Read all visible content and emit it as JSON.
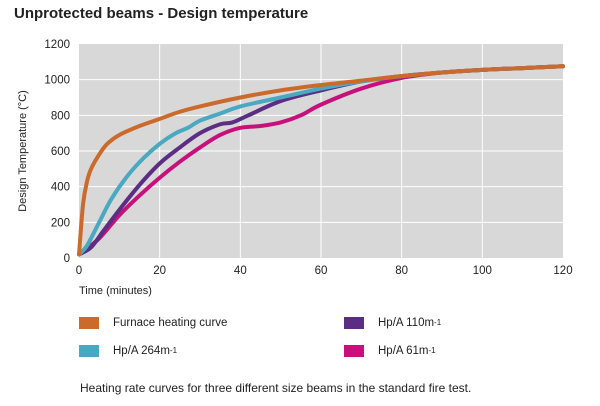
{
  "chart_data": {
    "type": "line",
    "title": "Unprotected beams - Design temperature",
    "xlabel": "Time (minutes)",
    "ylabel": "Design Temperature (°C)",
    "xlim": [
      0,
      120
    ],
    "ylim": [
      0,
      1200
    ],
    "xticks": [
      0,
      20,
      40,
      60,
      80,
      100,
      120
    ],
    "yticks": [
      0,
      200,
      400,
      600,
      800,
      1000,
      1200
    ],
    "grid": true,
    "legend_position": "bottom",
    "series": [
      {
        "name": "Furnace heating curve",
        "color": "#cc6a2c",
        "x": [
          0,
          1,
          2,
          3,
          5,
          7,
          10,
          15,
          20,
          25,
          30,
          40,
          50,
          60,
          70,
          80,
          90,
          100,
          110,
          120
        ],
        "y": [
          20,
          300,
          430,
          500,
          580,
          640,
          690,
          740,
          780,
          820,
          850,
          900,
          940,
          970,
          995,
          1020,
          1040,
          1055,
          1065,
          1075
        ]
      },
      {
        "name": "Hp/A 264m",
        "name_sup": "-1",
        "color": "#4aa8c0",
        "x": [
          0,
          2,
          5,
          8,
          12,
          16,
          20,
          24,
          27,
          30,
          35,
          40,
          50,
          60,
          70,
          80,
          90,
          100,
          110,
          120
        ],
        "y": [
          20,
          70,
          200,
          330,
          460,
          560,
          640,
          700,
          730,
          770,
          810,
          850,
          900,
          950,
          990,
          1020,
          1040,
          1055,
          1065,
          1075
        ]
      },
      {
        "name": "Hp/A 110m",
        "name_sup": "-1",
        "color": "#5b2d83",
        "x": [
          0,
          3,
          6,
          10,
          15,
          20,
          25,
          30,
          35,
          38,
          42,
          50,
          60,
          70,
          80,
          90,
          100,
          110,
          120
        ],
        "y": [
          20,
          60,
          150,
          270,
          410,
          530,
          620,
          700,
          750,
          760,
          800,
          880,
          940,
          990,
          1020,
          1040,
          1055,
          1065,
          1075
        ]
      },
      {
        "name": "Hp/A 61m",
        "name_sup": "-1",
        "color": "#c8107c",
        "x": [
          0,
          5,
          10,
          15,
          20,
          25,
          30,
          35,
          40,
          45,
          50,
          55,
          60,
          70,
          80,
          90,
          100,
          110,
          120
        ],
        "y": [
          20,
          110,
          240,
          350,
          450,
          540,
          620,
          690,
          730,
          740,
          760,
          800,
          860,
          950,
          1010,
          1040,
          1055,
          1065,
          1075
        ]
      }
    ]
  },
  "caption": "Heating rate curves for three different size beams in the standard fire test."
}
